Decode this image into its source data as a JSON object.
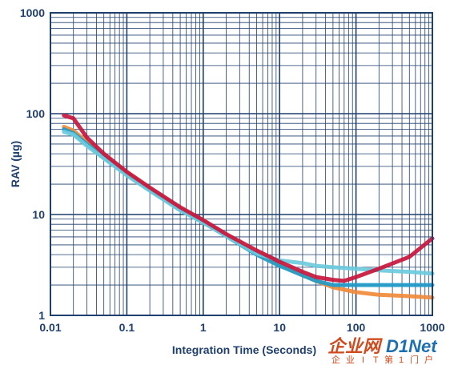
{
  "chart_data": {
    "type": "line",
    "xlabel": "Integration Time (Seconds)",
    "ylabel": "RAV (µg)",
    "xscale": "log",
    "yscale": "log",
    "xlim": [
      0.01,
      1000
    ],
    "ylim": [
      1,
      1000
    ],
    "grid": true,
    "x_tick_labels": [
      "0.01",
      "0.1",
      "1",
      "10",
      "100",
      "1000"
    ],
    "y_tick_labels": [
      "1",
      "10",
      "100",
      "1000"
    ],
    "series": [
      {
        "color": "#f08a3a",
        "points": [
          [
            0.015,
            74
          ],
          [
            0.02,
            68
          ],
          [
            0.03,
            52
          ],
          [
            0.05,
            38
          ],
          [
            0.1,
            26
          ],
          [
            0.2,
            18
          ],
          [
            0.5,
            11.5
          ],
          [
            1,
            8.6
          ],
          [
            2,
            6.2
          ],
          [
            5,
            4.1
          ],
          [
            10,
            3.2
          ],
          [
            20,
            2.5
          ],
          [
            30,
            2.2
          ],
          [
            50,
            1.9
          ],
          [
            100,
            1.7
          ],
          [
            200,
            1.6
          ],
          [
            500,
            1.55
          ],
          [
            1000,
            1.5
          ]
        ]
      },
      {
        "color": "#1f9bc8",
        "points": [
          [
            0.015,
            70
          ],
          [
            0.02,
            64
          ],
          [
            0.03,
            50
          ],
          [
            0.05,
            37
          ],
          [
            0.1,
            25
          ],
          [
            0.2,
            17.5
          ],
          [
            0.5,
            11.2
          ],
          [
            1,
            8.4
          ],
          [
            2,
            6.1
          ],
          [
            5,
            4.0
          ],
          [
            10,
            3.1
          ],
          [
            20,
            2.5
          ],
          [
            30,
            2.2
          ],
          [
            50,
            2.0
          ],
          [
            100,
            2.0
          ],
          [
            200,
            2.0
          ],
          [
            500,
            2.0
          ],
          [
            1000,
            2.0
          ]
        ]
      },
      {
        "color": "#6ccbdc",
        "points": [
          [
            0.015,
            66
          ],
          [
            0.02,
            62
          ],
          [
            0.03,
            48
          ],
          [
            0.05,
            36
          ],
          [
            0.1,
            24.5
          ],
          [
            0.2,
            17.2
          ],
          [
            0.5,
            11
          ],
          [
            1,
            8.3
          ],
          [
            2,
            6.1
          ],
          [
            5,
            4.1
          ],
          [
            10,
            3.5
          ],
          [
            20,
            3.3
          ],
          [
            30,
            3.1
          ],
          [
            50,
            3.0
          ],
          [
            100,
            2.9
          ],
          [
            200,
            2.8
          ],
          [
            500,
            2.7
          ],
          [
            1000,
            2.6
          ]
        ]
      },
      {
        "color": "#c8163c",
        "points": [
          [
            0.015,
            96
          ],
          [
            0.02,
            90
          ],
          [
            0.03,
            58
          ],
          [
            0.05,
            40
          ],
          [
            0.1,
            26.5
          ],
          [
            0.2,
            18.5
          ],
          [
            0.5,
            11.8
          ],
          [
            1,
            8.8
          ],
          [
            2,
            6.4
          ],
          [
            5,
            4.4
          ],
          [
            10,
            3.4
          ],
          [
            20,
            2.7
          ],
          [
            30,
            2.4
          ],
          [
            50,
            2.25
          ],
          [
            70,
            2.2
          ],
          [
            100,
            2.4
          ],
          [
            200,
            2.9
          ],
          [
            500,
            3.8
          ],
          [
            1000,
            5.8
          ]
        ]
      }
    ]
  },
  "watermark": {
    "chars_main": [
      "企",
      "业",
      "网"
    ],
    "brand": "D1Net",
    "chars_sub": [
      "企",
      "业",
      "I",
      "T",
      "第",
      "1",
      "门",
      "户"
    ],
    "color_main": "#d04a1e",
    "color_brand": "#1e6fb0"
  }
}
